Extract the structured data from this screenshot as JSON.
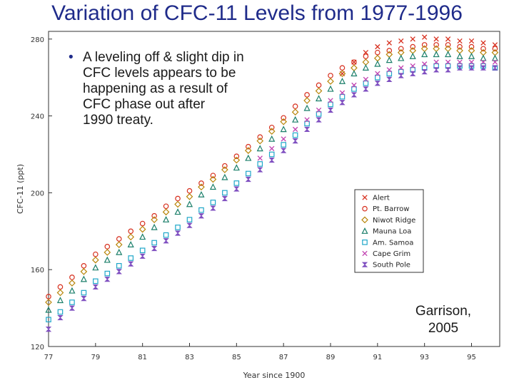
{
  "slide": {
    "title": "Variation of CFC-11 Levels from 1977-1996",
    "bullet_lines": [
      "A leveling off & slight dip in",
      "CFC levels appears to be",
      "happening as a result of",
      "CFC phase out after",
      "1990 treaty."
    ],
    "credit_lines": [
      "Garrison,",
      "2005"
    ]
  },
  "chart_data": {
    "type": "scatter",
    "title": "",
    "xlabel": "Year since 1900",
    "ylabel": "CFC-11 (ppt)",
    "xlim": [
      77,
      96.2
    ],
    "ylim": [
      120,
      284
    ],
    "xticks": [
      77,
      79,
      81,
      83,
      85,
      87,
      89,
      91,
      93,
      95
    ],
    "yticks": [
      120,
      160,
      200,
      240,
      280
    ],
    "grid": false,
    "legend_position": "lower-right",
    "series": [
      {
        "name": "Alert",
        "marker": "x",
        "color": "#d7301f",
        "x": [
          89.5,
          90,
          90.5,
          91,
          91.5,
          92,
          92.5,
          93,
          93.5,
          94,
          94.5,
          95,
          95.5,
          96
        ],
        "y": [
          262,
          268,
          273,
          276,
          278,
          279,
          280,
          281,
          280,
          280,
          279,
          279,
          278,
          277
        ]
      },
      {
        "name": "Pt. Barrow",
        "marker": "circle",
        "color": "#d7301f",
        "x": [
          77,
          77.5,
          78,
          78.5,
          79,
          79.5,
          80,
          80.5,
          81,
          81.5,
          82,
          82.5,
          83,
          83.5,
          84,
          84.5,
          85,
          85.5,
          86,
          86.5,
          87,
          87.5,
          88,
          88.5,
          89,
          89.5,
          90,
          90.5,
          91,
          91.5,
          92,
          92.5,
          93,
          93.5,
          94,
          94.5,
          95,
          95.5,
          96
        ],
        "y": [
          146,
          151,
          156,
          162,
          168,
          172,
          176,
          180,
          184,
          188,
          193,
          197,
          201,
          205,
          209,
          214,
          219,
          224,
          229,
          234,
          239,
          245,
          251,
          256,
          261,
          265,
          268,
          271,
          273,
          274,
          275,
          276,
          277,
          277,
          277,
          276,
          276,
          275,
          275
        ]
      },
      {
        "name": "Niwot Ridge",
        "marker": "diamond",
        "color": "#b8860b",
        "x": [
          77,
          77.5,
          78,
          78.5,
          79,
          79.5,
          80,
          80.5,
          81,
          81.5,
          82,
          82.5,
          83,
          83.5,
          84,
          84.5,
          85,
          85.5,
          86,
          86.5,
          87,
          87.5,
          88,
          88.5,
          89,
          89.5,
          90,
          90.5,
          91,
          91.5,
          92,
          92.5,
          93,
          93.5,
          94,
          94.5,
          95,
          95.5,
          96
        ],
        "y": [
          143,
          148,
          153,
          159,
          165,
          169,
          173,
          177,
          181,
          186,
          190,
          194,
          198,
          203,
          207,
          212,
          217,
          222,
          227,
          232,
          237,
          242,
          248,
          253,
          258,
          262,
          265,
          268,
          270,
          272,
          273,
          274,
          275,
          275,
          275,
          274,
          274,
          273,
          273
        ]
      },
      {
        "name": "Mauna Loa",
        "marker": "triangle",
        "color": "#1b7f6a",
        "x": [
          77,
          77.5,
          78,
          78.5,
          79,
          79.5,
          80,
          80.5,
          81,
          81.5,
          82,
          82.5,
          83,
          83.5,
          84,
          84.5,
          85,
          85.5,
          86,
          86.5,
          87,
          87.5,
          88,
          88.5,
          89,
          89.5,
          90,
          90.5,
          91,
          91.5,
          92,
          92.5,
          93,
          93.5,
          94,
          94.5,
          95,
          95.5,
          96
        ],
        "y": [
          139,
          144,
          149,
          155,
          161,
          165,
          169,
          173,
          177,
          182,
          186,
          190,
          194,
          199,
          203,
          208,
          213,
          218,
          223,
          228,
          233,
          238,
          244,
          249,
          254,
          258,
          262,
          265,
          267,
          269,
          270,
          271,
          272,
          272,
          272,
          271,
          271,
          270,
          270
        ]
      },
      {
        "name": "Am. Samoa",
        "marker": "square",
        "color": "#1fa7c9",
        "x": [
          77,
          77.5,
          78,
          78.5,
          79,
          79.5,
          80,
          80.5,
          81,
          81.5,
          82,
          82.5,
          83,
          83.5,
          84,
          84.5,
          85,
          85.5,
          86,
          86.5,
          87,
          87.5,
          88,
          88.5,
          89,
          89.5,
          90,
          90.5,
          91,
          91.5,
          92,
          92.5,
          93,
          93.5,
          94,
          94.5,
          95,
          95.5,
          96
        ],
        "y": [
          134,
          138,
          143,
          148,
          154,
          158,
          162,
          166,
          170,
          174,
          178,
          182,
          186,
          191,
          195,
          200,
          205,
          210,
          215,
          220,
          225,
          230,
          236,
          241,
          246,
          250,
          254,
          257,
          260,
          262,
          263,
          264,
          265,
          266,
          266,
          266,
          266,
          266,
          265
        ]
      },
      {
        "name": "Cape Grim",
        "marker": "x",
        "color": "#c040b0",
        "x": [
          86,
          86.5,
          87,
          87.5,
          88,
          88.5,
          89,
          89.5,
          90,
          90.5,
          91,
          91.5,
          92,
          92.5,
          93,
          93.5,
          94,
          94.5,
          95,
          95.5,
          96
        ],
        "y": [
          218,
          223,
          228,
          233,
          238,
          243,
          248,
          252,
          256,
          259,
          262,
          264,
          265,
          266,
          267,
          268,
          268,
          268,
          268,
          268,
          268
        ]
      },
      {
        "name": "South Pole",
        "marker": "bowtie",
        "color": "#7f4fc0",
        "x": [
          77,
          77.5,
          78,
          78.5,
          79,
          79.5,
          80,
          80.5,
          81,
          81.5,
          82,
          82.5,
          83,
          83.5,
          84,
          84.5,
          85,
          85.5,
          86,
          86.5,
          87,
          87.5,
          88,
          88.5,
          89,
          89.5,
          90,
          90.5,
          91,
          91.5,
          92,
          92.5,
          93,
          93.5,
          94,
          94.5,
          95,
          95.5,
          96
        ],
        "y": [
          129,
          135,
          140,
          145,
          151,
          155,
          159,
          163,
          167,
          171,
          175,
          179,
          183,
          188,
          192,
          197,
          202,
          207,
          212,
          217,
          222,
          227,
          233,
          238,
          243,
          247,
          251,
          254,
          257,
          259,
          261,
          262,
          263,
          264,
          264,
          265,
          265,
          265,
          265
        ]
      }
    ]
  }
}
